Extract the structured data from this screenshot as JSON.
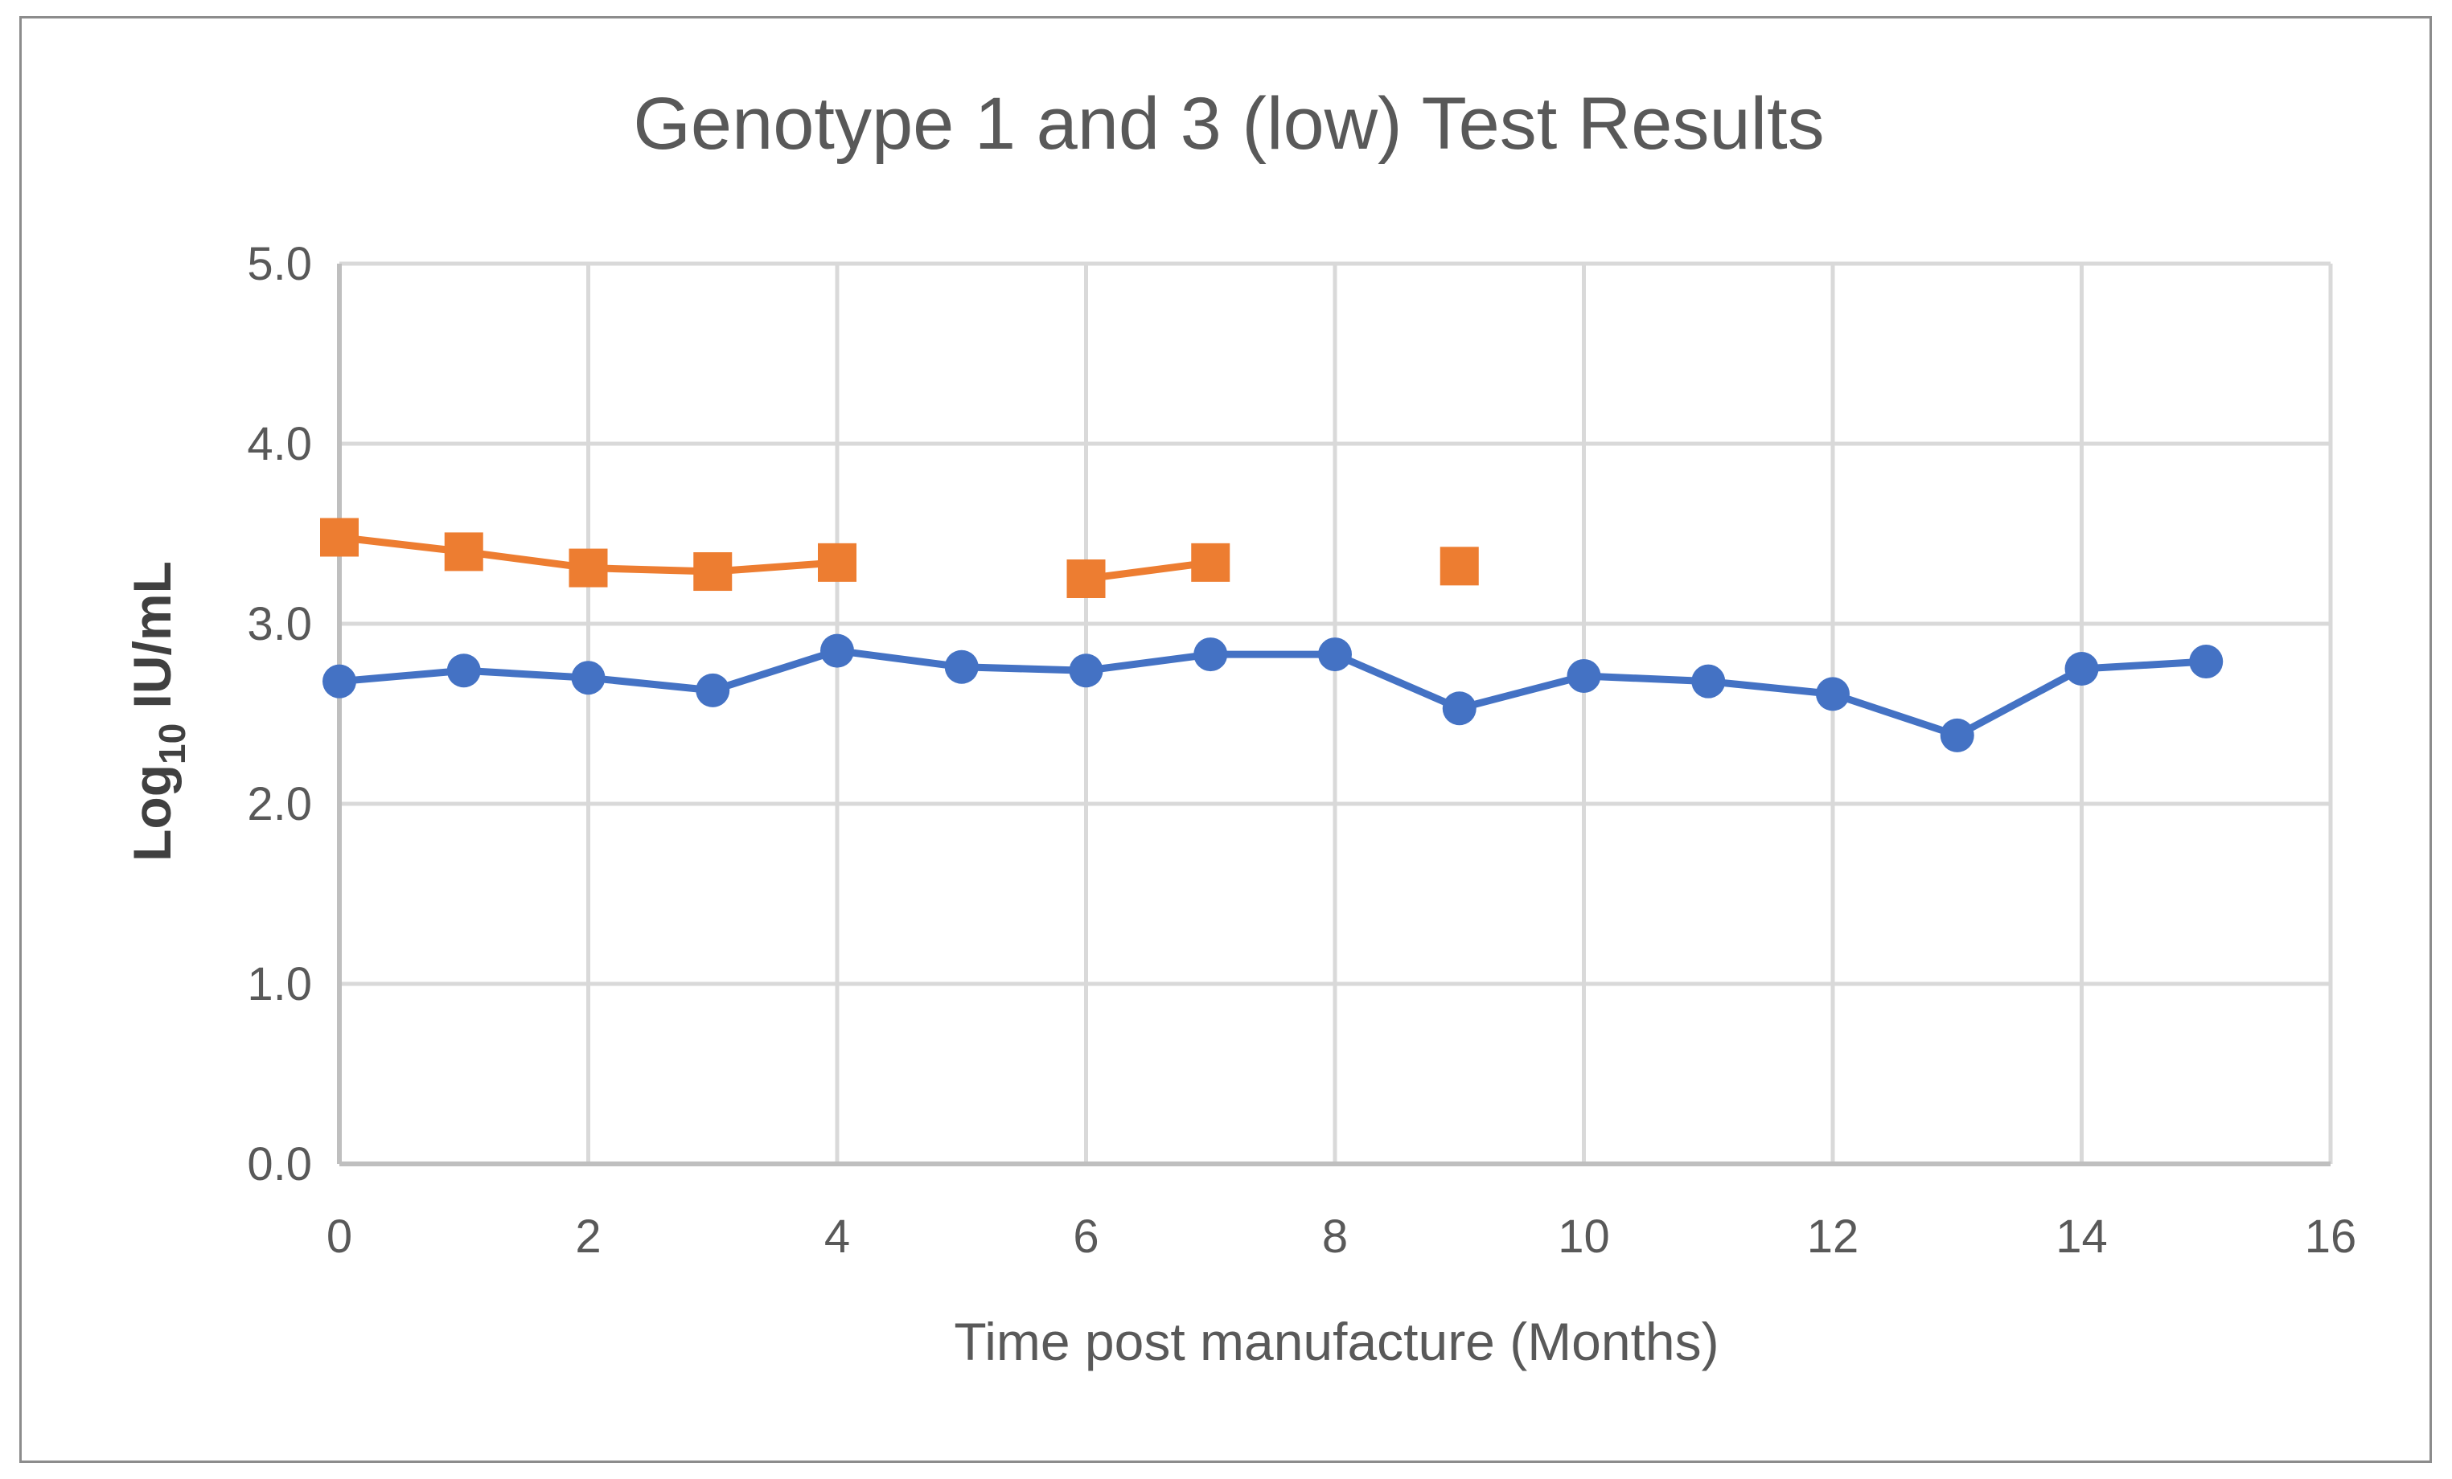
{
  "chart_data": {
    "type": "line",
    "title": "Genotype 1 and 3 (low) Test Results",
    "xlabel": "Time post manufacture (Months)",
    "ylabel": {
      "prefix": "Log",
      "subscript": "10",
      "suffix": " IU/mL"
    },
    "xlim": [
      0,
      16
    ],
    "ylim": [
      0,
      5
    ],
    "xticks": [
      "0",
      "2",
      "4",
      "6",
      "8",
      "10",
      "12",
      "14",
      "16"
    ],
    "yticks": [
      "0.0",
      "1.0",
      "2.0",
      "3.0",
      "4.0",
      "5.0"
    ],
    "grid": true,
    "legend": "none",
    "series": [
      {
        "color": "#4472c4",
        "marker": "circle",
        "points": [
          [
            0,
            2.68
          ],
          [
            1,
            2.74
          ],
          [
            2,
            2.7
          ],
          [
            3,
            2.63
          ],
          [
            4,
            2.85
          ],
          [
            5,
            2.76
          ],
          [
            6,
            2.74
          ],
          [
            7,
            2.83
          ],
          [
            8,
            2.83
          ],
          [
            9,
            2.53
          ],
          [
            10,
            2.71
          ],
          [
            11,
            2.68
          ],
          [
            12,
            2.61
          ],
          [
            13,
            2.38
          ],
          [
            14,
            2.75
          ],
          [
            15,
            2.79
          ]
        ]
      },
      {
        "color": "#ed7d31",
        "marker": "square",
        "points": [
          [
            0,
            3.48
          ],
          [
            1,
            3.4
          ],
          [
            2,
            3.31
          ],
          [
            3,
            3.29
          ],
          [
            4,
            3.34
          ],
          [
            5,
            null
          ],
          [
            6,
            3.25
          ],
          [
            7,
            3.34
          ],
          [
            8,
            null
          ],
          [
            9,
            3.32
          ]
        ]
      }
    ]
  }
}
